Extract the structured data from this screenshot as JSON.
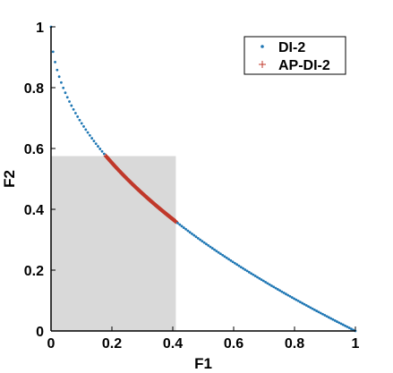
{
  "chart_data": {
    "type": "scatter",
    "xlabel": "F1",
    "ylabel": "F2",
    "xlim": [
      0,
      1
    ],
    "ylim": [
      0,
      1
    ],
    "xticks": [
      "0",
      "0.2",
      "0.4",
      "0.6",
      "0.8",
      "1"
    ],
    "yticks": [
      "0",
      "0.2",
      "0.4",
      "0.6",
      "0.8",
      "1"
    ],
    "grid": false,
    "legend_position": "top-right",
    "shaded_region": {
      "x": [
        0,
        0.41
      ],
      "y": [
        0,
        0.575
      ],
      "color": "#d9d9d9"
    },
    "series": [
      {
        "name": "DI-2",
        "marker": "dot",
        "color": "#1f77b4",
        "curve": "f2 = 1 - sqrt(f1)",
        "x_range": [
          0,
          1
        ],
        "n_points": 150
      },
      {
        "name": "AP-DI-2",
        "marker": "plus",
        "color": "#c0392b",
        "curve": "f2 = 1 - sqrt(f1)",
        "x_range": [
          0.18,
          0.41
        ],
        "n_points": 200
      }
    ]
  }
}
